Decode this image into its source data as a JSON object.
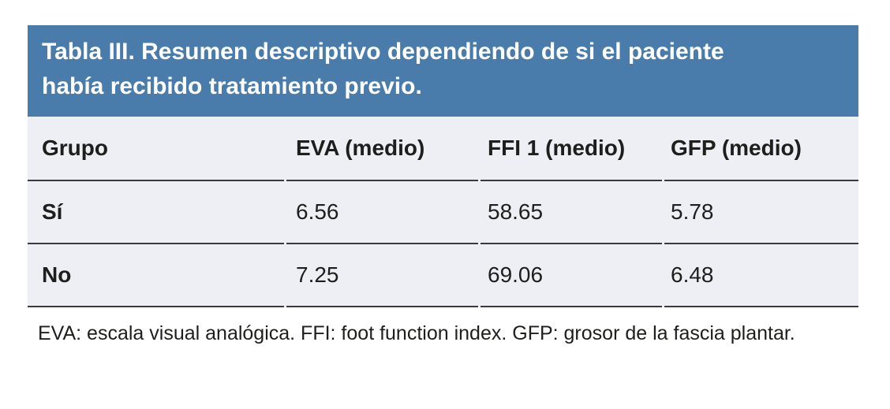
{
  "table": {
    "title": "Tabla III. Resumen descriptivo dependiendo de si el paciente había recibido tratamiento previo.",
    "columns": [
      "Grupo",
      "EVA (medio)",
      "FFI 1 (medio)",
      "GFP (medio)"
    ],
    "rows": [
      {
        "cells": [
          "Sí",
          "6.56",
          "58.65",
          "5.78"
        ]
      },
      {
        "cells": [
          "No",
          "7.25",
          "69.06",
          "6.48"
        ]
      }
    ],
    "footnote": "EVA: escala visual analógica. FFI: foot function index. GFP: grosor de la fascia plantar."
  },
  "colors": {
    "title_bar_bg": "#4a7cab",
    "title_text": "#ffffff",
    "body_bg": "#edeff4",
    "rule": "#3a3a3e",
    "text": "#1e1e1c"
  },
  "chart_data": {
    "type": "table",
    "title": "Tabla III. Resumen descriptivo dependiendo de si el paciente había recibido tratamiento previo.",
    "columns": [
      "Grupo",
      "EVA (medio)",
      "FFI 1 (medio)",
      "GFP (medio)"
    ],
    "rows": [
      [
        "Sí",
        6.56,
        58.65,
        5.78
      ],
      [
        "No",
        7.25,
        69.06,
        6.48
      ]
    ],
    "footnote": "EVA: escala visual analógica. FFI: foot function index. GFP: grosor de la fascia plantar."
  }
}
